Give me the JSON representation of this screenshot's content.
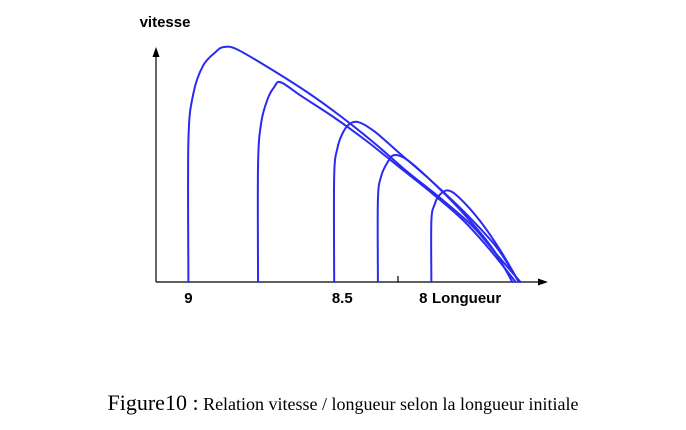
{
  "chart_data": {
    "type": "line",
    "ylabel": "vitesse",
    "xlabel": "Longueur",
    "x_tick_labels": [
      {
        "value": 9.45,
        "label": "9"
      },
      {
        "value": 8.5,
        "label": "8.5"
      },
      {
        "value": 8.0,
        "label": "8"
      }
    ],
    "xlim": [
      9.65,
      7.23
    ],
    "ylim": [
      0,
      1.0
    ],
    "x_axis_reversed": true,
    "grid": false,
    "series": [
      {
        "points": [
          [
            9.45,
            0.0
          ],
          [
            9.45,
            0.6
          ],
          [
            9.42,
            0.8
          ],
          [
            9.36,
            0.92
          ],
          [
            9.28,
            0.98
          ],
          [
            9.23,
            1.0
          ],
          [
            9.15,
            0.99
          ],
          [
            8.95,
            0.91
          ],
          [
            8.7,
            0.8
          ],
          [
            8.5,
            0.7
          ],
          [
            8.3,
            0.59
          ],
          [
            8.1,
            0.47
          ],
          [
            7.9,
            0.36
          ],
          [
            7.7,
            0.24
          ],
          [
            7.55,
            0.12
          ],
          [
            7.4,
            0.0
          ]
        ]
      },
      {
        "points": [
          [
            9.02,
            0.0
          ],
          [
            9.02,
            0.5
          ],
          [
            9.0,
            0.68
          ],
          [
            8.96,
            0.78
          ],
          [
            8.92,
            0.83
          ],
          [
            8.88,
            0.85
          ],
          [
            8.75,
            0.79
          ],
          [
            8.55,
            0.7
          ],
          [
            8.35,
            0.6
          ],
          [
            8.15,
            0.49
          ],
          [
            7.95,
            0.38
          ],
          [
            7.75,
            0.26
          ],
          [
            7.58,
            0.13
          ],
          [
            7.43,
            0.0
          ]
        ]
      },
      {
        "points": [
          [
            8.55,
            0.0
          ],
          [
            8.55,
            0.45
          ],
          [
            8.53,
            0.57
          ],
          [
            8.5,
            0.63
          ],
          [
            8.46,
            0.67
          ],
          [
            8.4,
            0.68
          ],
          [
            8.3,
            0.64
          ],
          [
            8.15,
            0.55
          ],
          [
            7.95,
            0.43
          ],
          [
            7.75,
            0.3
          ],
          [
            7.55,
            0.15
          ],
          [
            7.41,
            0.0
          ]
        ]
      },
      {
        "points": [
          [
            8.28,
            0.0
          ],
          [
            8.28,
            0.35
          ],
          [
            8.26,
            0.45
          ],
          [
            8.22,
            0.51
          ],
          [
            8.18,
            0.54
          ],
          [
            8.1,
            0.52
          ],
          [
            7.95,
            0.43
          ],
          [
            7.75,
            0.29
          ],
          [
            7.57,
            0.14
          ],
          [
            7.45,
            0.0
          ]
        ]
      },
      {
        "points": [
          [
            7.95,
            0.0
          ],
          [
            7.95,
            0.26
          ],
          [
            7.93,
            0.33
          ],
          [
            7.9,
            0.37
          ],
          [
            7.85,
            0.39
          ],
          [
            7.78,
            0.36
          ],
          [
            7.65,
            0.26
          ],
          [
            7.52,
            0.13
          ],
          [
            7.41,
            0.0
          ]
        ]
      }
    ]
  },
  "caption": {
    "figure_number": "Figure10 :",
    "text": " Relation vitesse / longueur selon la longueur initiale"
  },
  "colors": {
    "curve": "#2a2af0",
    "axis": "#000000"
  }
}
